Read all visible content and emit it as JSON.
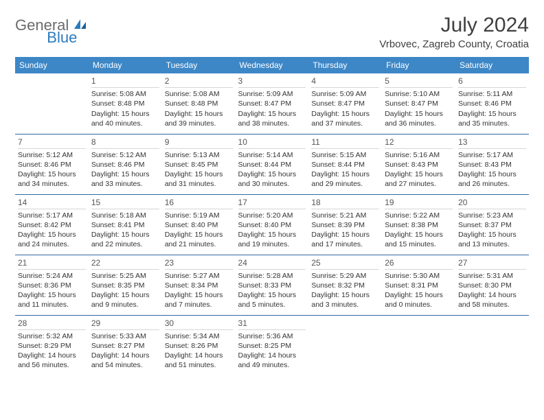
{
  "brand": {
    "general": "General",
    "blue": "Blue"
  },
  "title": "July 2024",
  "location": "Vrbovec, Zagreb County, Croatia",
  "weekdays": [
    "Sunday",
    "Monday",
    "Tuesday",
    "Wednesday",
    "Thursday",
    "Friday",
    "Saturday"
  ],
  "colors": {
    "header_bg": "#3d87c7",
    "header_text": "#ffffff",
    "row_border": "#2f6aa0",
    "logo_gray": "#6b6b6b",
    "logo_blue": "#2b7bbf"
  },
  "weeks": [
    [
      {
        "day": "",
        "sunrise": "",
        "sunset": "",
        "daylight": ""
      },
      {
        "day": "1",
        "sunrise": "Sunrise: 5:08 AM",
        "sunset": "Sunset: 8:48 PM",
        "daylight": "Daylight: 15 hours and 40 minutes."
      },
      {
        "day": "2",
        "sunrise": "Sunrise: 5:08 AM",
        "sunset": "Sunset: 8:48 PM",
        "daylight": "Daylight: 15 hours and 39 minutes."
      },
      {
        "day": "3",
        "sunrise": "Sunrise: 5:09 AM",
        "sunset": "Sunset: 8:47 PM",
        "daylight": "Daylight: 15 hours and 38 minutes."
      },
      {
        "day": "4",
        "sunrise": "Sunrise: 5:09 AM",
        "sunset": "Sunset: 8:47 PM",
        "daylight": "Daylight: 15 hours and 37 minutes."
      },
      {
        "day": "5",
        "sunrise": "Sunrise: 5:10 AM",
        "sunset": "Sunset: 8:47 PM",
        "daylight": "Daylight: 15 hours and 36 minutes."
      },
      {
        "day": "6",
        "sunrise": "Sunrise: 5:11 AM",
        "sunset": "Sunset: 8:46 PM",
        "daylight": "Daylight: 15 hours and 35 minutes."
      }
    ],
    [
      {
        "day": "7",
        "sunrise": "Sunrise: 5:12 AM",
        "sunset": "Sunset: 8:46 PM",
        "daylight": "Daylight: 15 hours and 34 minutes."
      },
      {
        "day": "8",
        "sunrise": "Sunrise: 5:12 AM",
        "sunset": "Sunset: 8:46 PM",
        "daylight": "Daylight: 15 hours and 33 minutes."
      },
      {
        "day": "9",
        "sunrise": "Sunrise: 5:13 AM",
        "sunset": "Sunset: 8:45 PM",
        "daylight": "Daylight: 15 hours and 31 minutes."
      },
      {
        "day": "10",
        "sunrise": "Sunrise: 5:14 AM",
        "sunset": "Sunset: 8:44 PM",
        "daylight": "Daylight: 15 hours and 30 minutes."
      },
      {
        "day": "11",
        "sunrise": "Sunrise: 5:15 AM",
        "sunset": "Sunset: 8:44 PM",
        "daylight": "Daylight: 15 hours and 29 minutes."
      },
      {
        "day": "12",
        "sunrise": "Sunrise: 5:16 AM",
        "sunset": "Sunset: 8:43 PM",
        "daylight": "Daylight: 15 hours and 27 minutes."
      },
      {
        "day": "13",
        "sunrise": "Sunrise: 5:17 AM",
        "sunset": "Sunset: 8:43 PM",
        "daylight": "Daylight: 15 hours and 26 minutes."
      }
    ],
    [
      {
        "day": "14",
        "sunrise": "Sunrise: 5:17 AM",
        "sunset": "Sunset: 8:42 PM",
        "daylight": "Daylight: 15 hours and 24 minutes."
      },
      {
        "day": "15",
        "sunrise": "Sunrise: 5:18 AM",
        "sunset": "Sunset: 8:41 PM",
        "daylight": "Daylight: 15 hours and 22 minutes."
      },
      {
        "day": "16",
        "sunrise": "Sunrise: 5:19 AM",
        "sunset": "Sunset: 8:40 PM",
        "daylight": "Daylight: 15 hours and 21 minutes."
      },
      {
        "day": "17",
        "sunrise": "Sunrise: 5:20 AM",
        "sunset": "Sunset: 8:40 PM",
        "daylight": "Daylight: 15 hours and 19 minutes."
      },
      {
        "day": "18",
        "sunrise": "Sunrise: 5:21 AM",
        "sunset": "Sunset: 8:39 PM",
        "daylight": "Daylight: 15 hours and 17 minutes."
      },
      {
        "day": "19",
        "sunrise": "Sunrise: 5:22 AM",
        "sunset": "Sunset: 8:38 PM",
        "daylight": "Daylight: 15 hours and 15 minutes."
      },
      {
        "day": "20",
        "sunrise": "Sunrise: 5:23 AM",
        "sunset": "Sunset: 8:37 PM",
        "daylight": "Daylight: 15 hours and 13 minutes."
      }
    ],
    [
      {
        "day": "21",
        "sunrise": "Sunrise: 5:24 AM",
        "sunset": "Sunset: 8:36 PM",
        "daylight": "Daylight: 15 hours and 11 minutes."
      },
      {
        "day": "22",
        "sunrise": "Sunrise: 5:25 AM",
        "sunset": "Sunset: 8:35 PM",
        "daylight": "Daylight: 15 hours and 9 minutes."
      },
      {
        "day": "23",
        "sunrise": "Sunrise: 5:27 AM",
        "sunset": "Sunset: 8:34 PM",
        "daylight": "Daylight: 15 hours and 7 minutes."
      },
      {
        "day": "24",
        "sunrise": "Sunrise: 5:28 AM",
        "sunset": "Sunset: 8:33 PM",
        "daylight": "Daylight: 15 hours and 5 minutes."
      },
      {
        "day": "25",
        "sunrise": "Sunrise: 5:29 AM",
        "sunset": "Sunset: 8:32 PM",
        "daylight": "Daylight: 15 hours and 3 minutes."
      },
      {
        "day": "26",
        "sunrise": "Sunrise: 5:30 AM",
        "sunset": "Sunset: 8:31 PM",
        "daylight": "Daylight: 15 hours and 0 minutes."
      },
      {
        "day": "27",
        "sunrise": "Sunrise: 5:31 AM",
        "sunset": "Sunset: 8:30 PM",
        "daylight": "Daylight: 14 hours and 58 minutes."
      }
    ],
    [
      {
        "day": "28",
        "sunrise": "Sunrise: 5:32 AM",
        "sunset": "Sunset: 8:29 PM",
        "daylight": "Daylight: 14 hours and 56 minutes."
      },
      {
        "day": "29",
        "sunrise": "Sunrise: 5:33 AM",
        "sunset": "Sunset: 8:27 PM",
        "daylight": "Daylight: 14 hours and 54 minutes."
      },
      {
        "day": "30",
        "sunrise": "Sunrise: 5:34 AM",
        "sunset": "Sunset: 8:26 PM",
        "daylight": "Daylight: 14 hours and 51 minutes."
      },
      {
        "day": "31",
        "sunrise": "Sunrise: 5:36 AM",
        "sunset": "Sunset: 8:25 PM",
        "daylight": "Daylight: 14 hours and 49 minutes."
      },
      {
        "day": "",
        "sunrise": "",
        "sunset": "",
        "daylight": ""
      },
      {
        "day": "",
        "sunrise": "",
        "sunset": "",
        "daylight": ""
      },
      {
        "day": "",
        "sunrise": "",
        "sunset": "",
        "daylight": ""
      }
    ]
  ]
}
